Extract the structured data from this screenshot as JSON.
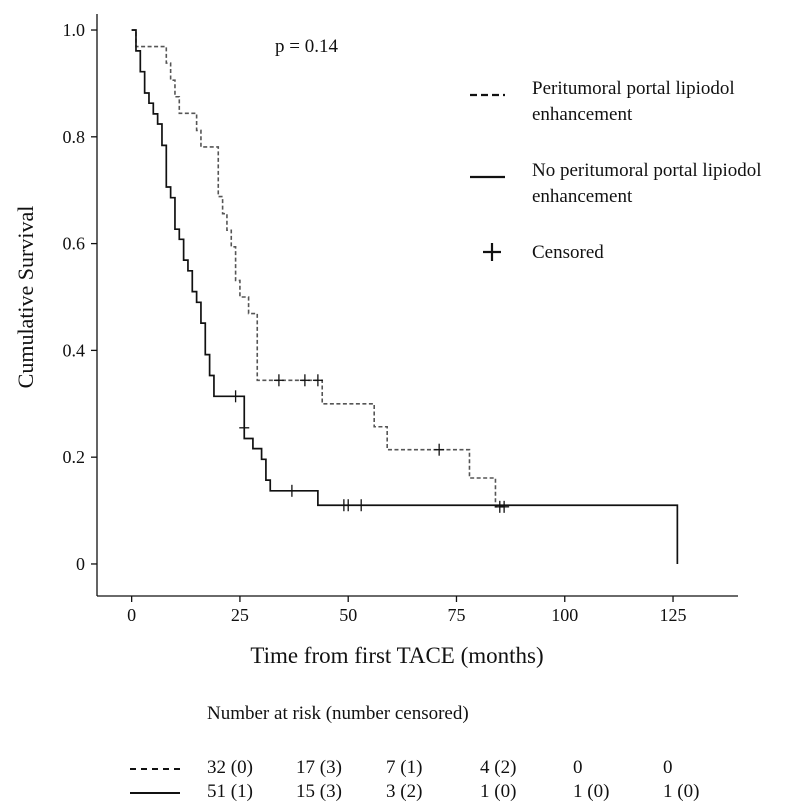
{
  "chart_data": {
    "type": "line",
    "subtype": "kaplan-meier",
    "xlabel": "Time from first TACE (months)",
    "ylabel": "Cumulative Survival",
    "xlim": [
      -8,
      140
    ],
    "ylim": [
      -0.06,
      1.03
    ],
    "xticks": [
      0,
      25,
      50,
      75,
      100,
      125
    ],
    "xtick_labels": [
      "0",
      "25",
      "50",
      "75",
      "100",
      "125"
    ],
    "yticks": [
      0,
      0.2,
      0.4,
      0.6,
      0.8,
      1.0
    ],
    "ytick_labels": [
      "0",
      "0.2",
      "0.4",
      "0.6",
      "0.8",
      "1.0"
    ],
    "annotation": "p = 0.14",
    "legend_position": "top-right",
    "legend": [
      {
        "line1": "Peritumoral portal lipiodol",
        "line2": "enhancement",
        "style": "dashed"
      },
      {
        "line1": "No peritumoral portal lipiodol",
        "line2": "enhancement",
        "style": "solid"
      },
      {
        "line1": "Censored",
        "style": "plus"
      }
    ],
    "series": [
      {
        "style": "dashed",
        "color": "#555555",
        "x": [
          0,
          1,
          8,
          9,
          10,
          11,
          12,
          15,
          16,
          18,
          20,
          21,
          22,
          23,
          24,
          25,
          27,
          29,
          44,
          56,
          59,
          78,
          84,
          86
        ],
        "y": [
          1.0,
          0.969,
          0.938,
          0.906,
          0.875,
          0.844,
          0.844,
          0.812,
          0.781,
          0.781,
          0.688,
          0.656,
          0.625,
          0.594,
          0.531,
          0.5,
          0.469,
          0.344,
          0.3,
          0.257,
          0.214,
          0.161,
          0.107,
          0.107
        ],
        "censored_x": [
          34,
          40,
          43,
          71,
          85,
          86
        ],
        "censored_y": [
          0.344,
          0.344,
          0.344,
          0.214,
          0.107,
          0.107
        ]
      },
      {
        "style": "solid",
        "color": "#111111",
        "x": [
          0,
          1,
          2,
          3,
          4,
          5,
          6,
          7,
          8,
          9,
          10,
          11,
          12,
          13,
          14,
          15,
          16,
          17,
          18,
          19,
          21,
          26,
          28,
          30,
          31,
          32,
          43,
          126
        ],
        "y": [
          1.0,
          0.961,
          0.922,
          0.882,
          0.863,
          0.843,
          0.824,
          0.784,
          0.706,
          0.686,
          0.627,
          0.608,
          0.569,
          0.549,
          0.51,
          0.49,
          0.451,
          0.392,
          0.353,
          0.314,
          0.314,
          0.235,
          0.216,
          0.196,
          0.157,
          0.137,
          0.11,
          0.0
        ],
        "censored_x": [
          24,
          26,
          37,
          49,
          50,
          53
        ],
        "censored_y": [
          0.314,
          0.255,
          0.137,
          0.11,
          0.11,
          0.11
        ]
      }
    ]
  },
  "risk_table": {
    "title": "Number at risk (number censored)",
    "rows": [
      {
        "style": "dashed",
        "values": [
          "32 (0)",
          "17 (3)",
          "7 (1)",
          "4 (2)",
          "0",
          "0"
        ]
      },
      {
        "style": "solid",
        "values": [
          "51 (1)",
          "15 (3)",
          "3 (2)",
          "1 (0)",
          "1 (0)",
          "1 (0)"
        ]
      }
    ]
  }
}
